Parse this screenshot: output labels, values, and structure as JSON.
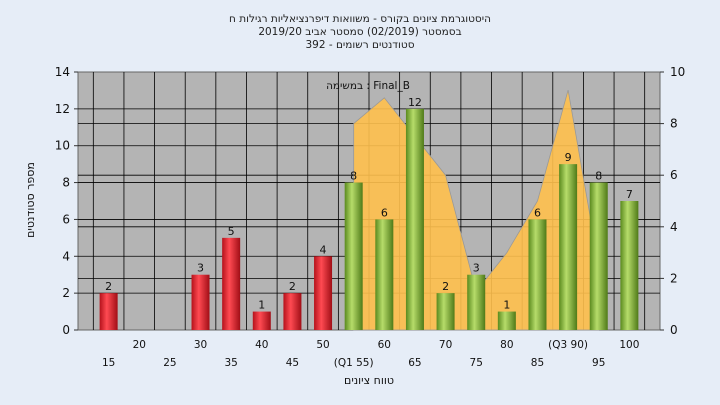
{
  "chart_data": {
    "type": "bar",
    "title_lines": [
      "היסטוגרמת ציונים בקורס - משוואות דיפרנציאליות רגילות ח",
      "בסמסטר  (02/2019)  סמסטר אביב 2019/20",
      "סטודנטים רשומים - 392"
    ],
    "annotation": "במשימה : Final_B",
    "xlabel": "טווח ציונים",
    "ylabel": "מספר סטודנטים",
    "ylim": [
      0,
      14
    ],
    "y_ticks": [
      0,
      2,
      4,
      6,
      8,
      10,
      12,
      14
    ],
    "y2lim": [
      0,
      10
    ],
    "y2_ticks": [
      0,
      2,
      4,
      6,
      8,
      10
    ],
    "categories": [
      "15",
      "20",
      "25",
      "30",
      "35",
      "40",
      "45",
      "50",
      "(Q1 55)",
      "60",
      "65",
      "70",
      "75",
      "80",
      "85",
      "(Q3 90)",
      "95",
      "100"
    ],
    "series": [
      {
        "values": [
          2,
          0,
          0,
          3,
          5,
          1,
          2,
          4,
          8,
          6,
          12,
          2,
          3,
          1,
          6,
          9,
          8,
          7
        ],
        "colors": [
          "#e02530",
          "#e02530",
          "#e02530",
          "#e02530",
          "#e02530",
          "#e02530",
          "#e02530",
          "#e02530",
          "#7aac30",
          "#7aac30",
          "#7aac30",
          "#7aac30",
          "#7aac30",
          "#7aac30",
          "#7aac30",
          "#7aac30",
          "#7aac30",
          "#7aac30"
        ]
      }
    ],
    "area_series": {
      "values": [
        null,
        null,
        null,
        null,
        null,
        null,
        null,
        null,
        8,
        9,
        7.5,
        6,
        1.5,
        3,
        5,
        9.3,
        2.5,
        null
      ],
      "color": "#ffc04d"
    },
    "grid": true,
    "plot_background": "#b4b4b4"
  }
}
